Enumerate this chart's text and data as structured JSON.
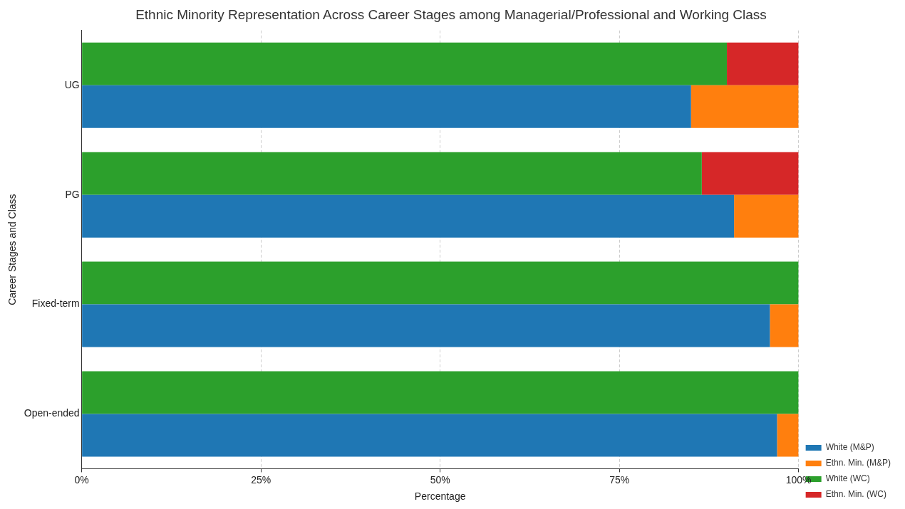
{
  "chart_data": {
    "type": "bar",
    "orientation": "horizontal",
    "stacked": true,
    "title": "Ethnic Minority Representation Across Career Stages among Managerial/Professional and Working Class",
    "xlabel": "Percentage",
    "ylabel": "Career Stages and Class",
    "categories": [
      null,
      "UG",
      null,
      "PG",
      null,
      "Fixed-term",
      null,
      "Open-ended"
    ],
    "series": [
      {
        "name": "White (M&P)",
        "color": "#1f77b4",
        "values": [
          null,
          85,
          null,
          91,
          null,
          96,
          null,
          97
        ]
      },
      {
        "name": "Ethn. Min. (M&P)",
        "color": "#ff7f0e",
        "values": [
          null,
          15,
          null,
          9,
          null,
          4,
          null,
          3
        ]
      },
      {
        "name": "White (WC)",
        "color": "#2ca02c",
        "values": [
          90,
          null,
          86.5,
          null,
          100,
          null,
          100,
          null
        ]
      },
      {
        "name": "Ethn. Min. (WC)",
        "color": "#d62728",
        "values": [
          10,
          null,
          13.5,
          null,
          0,
          null,
          0,
          null
        ]
      }
    ],
    "xlim": [
      0,
      100
    ],
    "xticks": [
      {
        "value": 0,
        "label": "0%"
      },
      {
        "value": 25,
        "label": "25%"
      },
      {
        "value": 50,
        "label": "50%"
      },
      {
        "value": 75,
        "label": "75%"
      },
      {
        "value": 100,
        "label": "100%"
      }
    ],
    "grid": "x",
    "legend": "bottom right"
  }
}
